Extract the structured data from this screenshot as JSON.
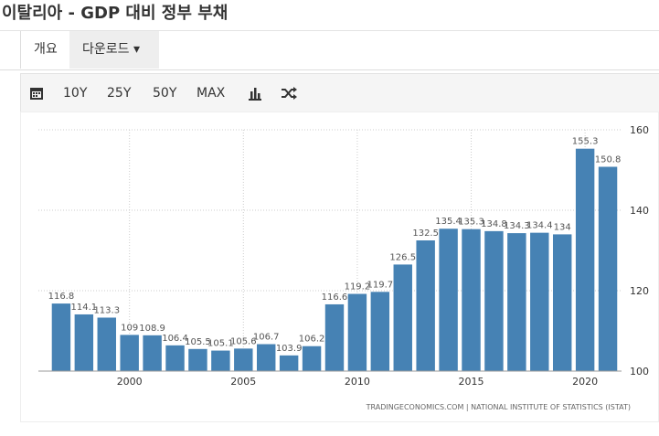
{
  "header": {
    "title": "이탈리아 - GDP 대비 정부 부채"
  },
  "tabs": [
    "개요",
    "다운로드"
  ],
  "toolbar": [
    "10Y",
    "25Y",
    "50Y",
    "MAX"
  ],
  "chart_data": {
    "type": "bar",
    "color": "#4682b4",
    "x": [
      1997,
      1998,
      1999,
      2000,
      2001,
      2002,
      2003,
      2004,
      2005,
      2006,
      2007,
      2008,
      2009,
      2010,
      2011,
      2012,
      2013,
      2014,
      2015,
      2016,
      2017,
      2018,
      2019,
      2020,
      2021
    ],
    "values": [
      116.8,
      114.1,
      113.3,
      109,
      108.9,
      106.4,
      105.5,
      105.1,
      105.6,
      106.7,
      103.9,
      106.2,
      116.6,
      119.2,
      119.7,
      126.5,
      132.5,
      135.4,
      135.3,
      134.8,
      134.3,
      134.4,
      134,
      155.3,
      150.8
    ],
    "xlim": [
      1996,
      2021.6
    ],
    "xticks": [
      2000,
      2005,
      2010,
      2015,
      2020
    ],
    "ylim": [
      100,
      160
    ],
    "yticks": [
      100,
      120,
      140,
      160
    ],
    "grid": true,
    "source": "TRADINGECONOMICS.COM  |  NATIONAL INSTITUTE OF STATISTICS (ISTAT)"
  }
}
